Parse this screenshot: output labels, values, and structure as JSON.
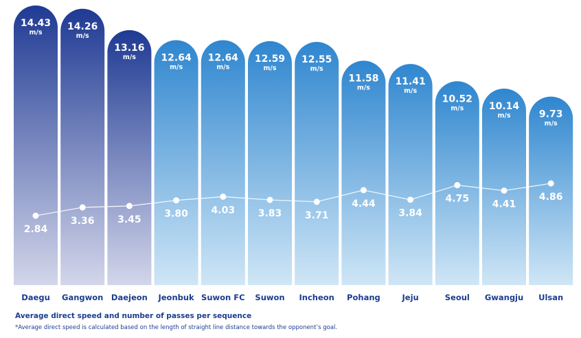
{
  "chart_data": {
    "type": "bar",
    "categories": [
      "Daegu",
      "Gangwon",
      "Daejeon",
      "Jeonbuk",
      "Suwon FC",
      "Suwon",
      "Incheon",
      "Pohang",
      "Jeju",
      "Seoul",
      "Gwangju",
      "Ulsan"
    ],
    "series": [
      {
        "values": [
          14.43,
          14.26,
          13.16,
          12.64,
          12.64,
          12.59,
          12.55,
          11.58,
          11.41,
          10.52,
          10.14,
          9.73
        ],
        "labels": [
          "14.43",
          "14.26",
          "13.16",
          "12.64",
          "12.64",
          "12.59",
          "12.55",
          "11.58",
          "11.41",
          "10.52",
          "10.14",
          "9.73"
        ],
        "unit": "m/s"
      },
      {
        "values": [
          2.84,
          3.36,
          3.45,
          3.8,
          4.03,
          3.83,
          3.71,
          4.44,
          3.84,
          4.75,
          4.41,
          4.86
        ],
        "labels": [
          "2.84",
          "3.36",
          "3.45",
          "3.80",
          "4.03",
          "3.83",
          "3.71",
          "4.44",
          "3.84",
          "4.75",
          "4.41",
          "4.86"
        ]
      }
    ],
    "highlight_colors": {
      "dark_top": "#1f3a93",
      "dark_bottom": "#d3d6ea",
      "light_top": "#2f86cf",
      "light_bottom": "#cfe6f6",
      "category_label": "#1a3d8f"
    },
    "title": "Average direct speed and number of passes per sequence",
    "note": "*Average direct speed is calculated based on the length of straight line distance towards the opponent’s goal."
  }
}
